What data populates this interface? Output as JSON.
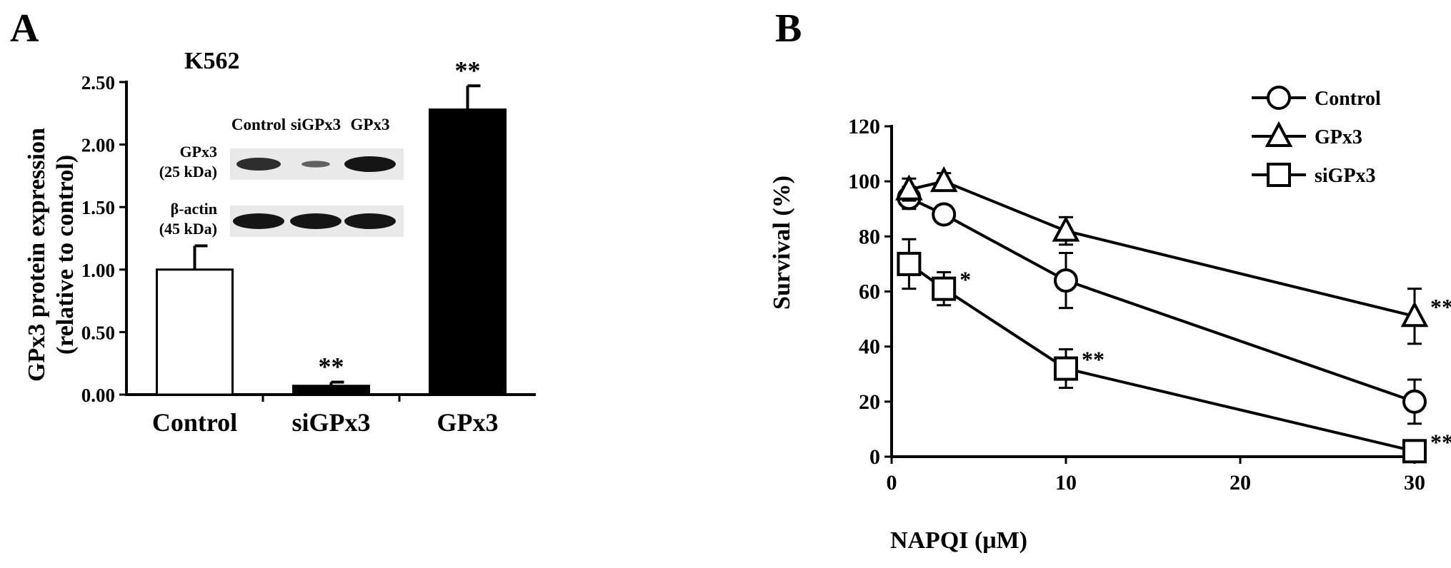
{
  "panel_a": {
    "letter": "A",
    "cell_line": "K562",
    "blot": {
      "lane_labels": [
        "Control",
        "siGPx3",
        "GPx3"
      ],
      "rows": [
        {
          "name": "GPx3",
          "size": "(25 kDa)",
          "intensity": [
            0.75,
            0.2,
            1.0
          ]
        },
        {
          "name": "β-actin",
          "size": "(45 kDa)",
          "intensity": [
            1.0,
            1.0,
            1.0
          ]
        }
      ]
    }
  },
  "panel_b": {
    "letter": "B"
  },
  "colors": {
    "ink": "#000000",
    "background": "#ffffff",
    "blot_band": "#151515",
    "blot_background": "#e9e9e9"
  },
  "chart_data": [
    {
      "type": "bar",
      "categories": [
        "Control",
        "siGPx3",
        "GPx3"
      ],
      "values": [
        1.0,
        0.07,
        2.28
      ],
      "errors": [
        0.19,
        0.03,
        0.19
      ],
      "fills": [
        "#ffffff",
        "#000000",
        "#000000"
      ],
      "annotations": [
        "",
        "**",
        "**"
      ],
      "ylabel_line1": "GPx3 protein expression",
      "ylabel_line2": "(relative to control)",
      "ylim": [
        0,
        2.5
      ],
      "yticks": [
        "0.00",
        "0.50",
        "1.00",
        "1.50",
        "2.00",
        "2.50"
      ],
      "grid": false
    },
    {
      "type": "line",
      "xlabel": "NAPQI (μM)",
      "ylabel": "Survival (%)",
      "xlim": [
        0,
        30
      ],
      "ylim": [
        0,
        120
      ],
      "xticks": [
        "0",
        "10",
        "20",
        "30"
      ],
      "yticks": [
        "0",
        "20",
        "40",
        "60",
        "80",
        "100",
        "120"
      ],
      "grid": false,
      "legend_position": "top-right",
      "series": [
        {
          "name": "Control",
          "marker": "circle",
          "points": [
            {
              "x": 1,
              "y": 94,
              "err": 4,
              "sig": ""
            },
            {
              "x": 3,
              "y": 88,
              "err": 3,
              "sig": ""
            },
            {
              "x": 10,
              "y": 64,
              "err": 10,
              "sig": ""
            },
            {
              "x": 30,
              "y": 20,
              "err": 8,
              "sig": ""
            }
          ]
        },
        {
          "name": "GPx3",
          "marker": "triangle",
          "points": [
            {
              "x": 1,
              "y": 97,
              "err": 4,
              "sig": ""
            },
            {
              "x": 3,
              "y": 100,
              "err": 3,
              "sig": ""
            },
            {
              "x": 10,
              "y": 82,
              "err": 5,
              "sig": ""
            },
            {
              "x": 30,
              "y": 51,
              "err": 10,
              "sig": "**"
            }
          ]
        },
        {
          "name": "siGPx3",
          "marker": "square",
          "points": [
            {
              "x": 1,
              "y": 70,
              "err": 9,
              "sig": ""
            },
            {
              "x": 3,
              "y": 61,
              "err": 6,
              "sig": "*"
            },
            {
              "x": 10,
              "y": 32,
              "err": 7,
              "sig": "**"
            },
            {
              "x": 30,
              "y": 2,
              "err": 2,
              "sig": "**"
            }
          ]
        }
      ]
    }
  ]
}
